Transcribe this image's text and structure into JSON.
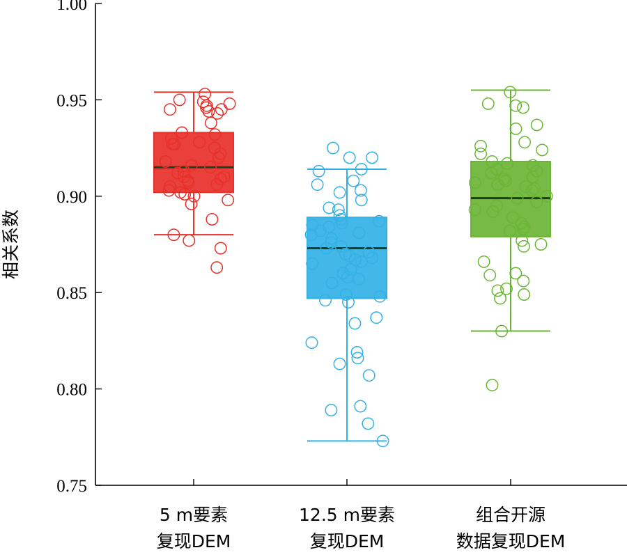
{
  "chart_data": {
    "type": "box",
    "ylabel": "相关系数",
    "ylim": [
      0.75,
      1.0
    ],
    "yticks": [
      "0.75",
      "0.80",
      "0.85",
      "0.90",
      "0.95",
      "1.00"
    ],
    "grid": false,
    "legend": "none",
    "categories": [
      [
        "5 m要素",
        "复现DEM"
      ],
      [
        "12.5 m要素",
        "复现DEM"
      ],
      [
        "组合开源",
        "数据复现DEM"
      ]
    ],
    "series": [
      {
        "color": "#e8302a",
        "whisker_low": 0.88,
        "q1": 0.902,
        "median": 0.915,
        "q3": 0.933,
        "whisker_high": 0.954,
        "points": [
          0.953,
          0.95,
          0.949,
          0.948,
          0.947,
          0.946,
          0.945,
          0.945,
          0.944,
          0.943,
          0.938,
          0.933,
          0.932,
          0.93,
          0.928,
          0.927,
          0.927,
          0.925,
          0.922,
          0.92,
          0.918,
          0.916,
          0.915,
          0.913,
          0.912,
          0.91,
          0.91,
          0.909,
          0.908,
          0.907,
          0.906,
          0.905,
          0.903,
          0.902,
          0.901,
          0.9,
          0.898,
          0.896,
          0.888,
          0.88,
          0.877,
          0.873,
          0.863
        ]
      },
      {
        "color": "#33b1e5",
        "whisker_low": 0.773,
        "q1": 0.847,
        "median": 0.873,
        "q3": 0.889,
        "whisker_high": 0.914,
        "points": [
          0.925,
          0.92,
          0.92,
          0.914,
          0.913,
          0.908,
          0.906,
          0.903,
          0.902,
          0.898,
          0.894,
          0.893,
          0.89,
          0.888,
          0.887,
          0.886,
          0.885,
          0.884,
          0.882,
          0.881,
          0.88,
          0.878,
          0.876,
          0.874,
          0.873,
          0.871,
          0.87,
          0.869,
          0.868,
          0.867,
          0.866,
          0.865,
          0.862,
          0.86,
          0.858,
          0.857,
          0.855,
          0.849,
          0.848,
          0.846,
          0.845,
          0.837,
          0.834,
          0.824,
          0.819,
          0.816,
          0.813,
          0.807,
          0.791,
          0.789,
          0.782,
          0.773
        ]
      },
      {
        "color": "#6bb536",
        "whisker_low": 0.83,
        "q1": 0.879,
        "median": 0.899,
        "q3": 0.918,
        "whisker_high": 0.955,
        "points": [
          0.954,
          0.948,
          0.947,
          0.946,
          0.937,
          0.935,
          0.928,
          0.926,
          0.924,
          0.922,
          0.918,
          0.917,
          0.916,
          0.914,
          0.913,
          0.912,
          0.91,
          0.909,
          0.908,
          0.907,
          0.906,
          0.905,
          0.904,
          0.903,
          0.9,
          0.899,
          0.897,
          0.895,
          0.893,
          0.892,
          0.889,
          0.886,
          0.884,
          0.883,
          0.882,
          0.877,
          0.875,
          0.874,
          0.866,
          0.86,
          0.859,
          0.856,
          0.852,
          0.851,
          0.849,
          0.847,
          0.83,
          0.802
        ]
      }
    ]
  }
}
